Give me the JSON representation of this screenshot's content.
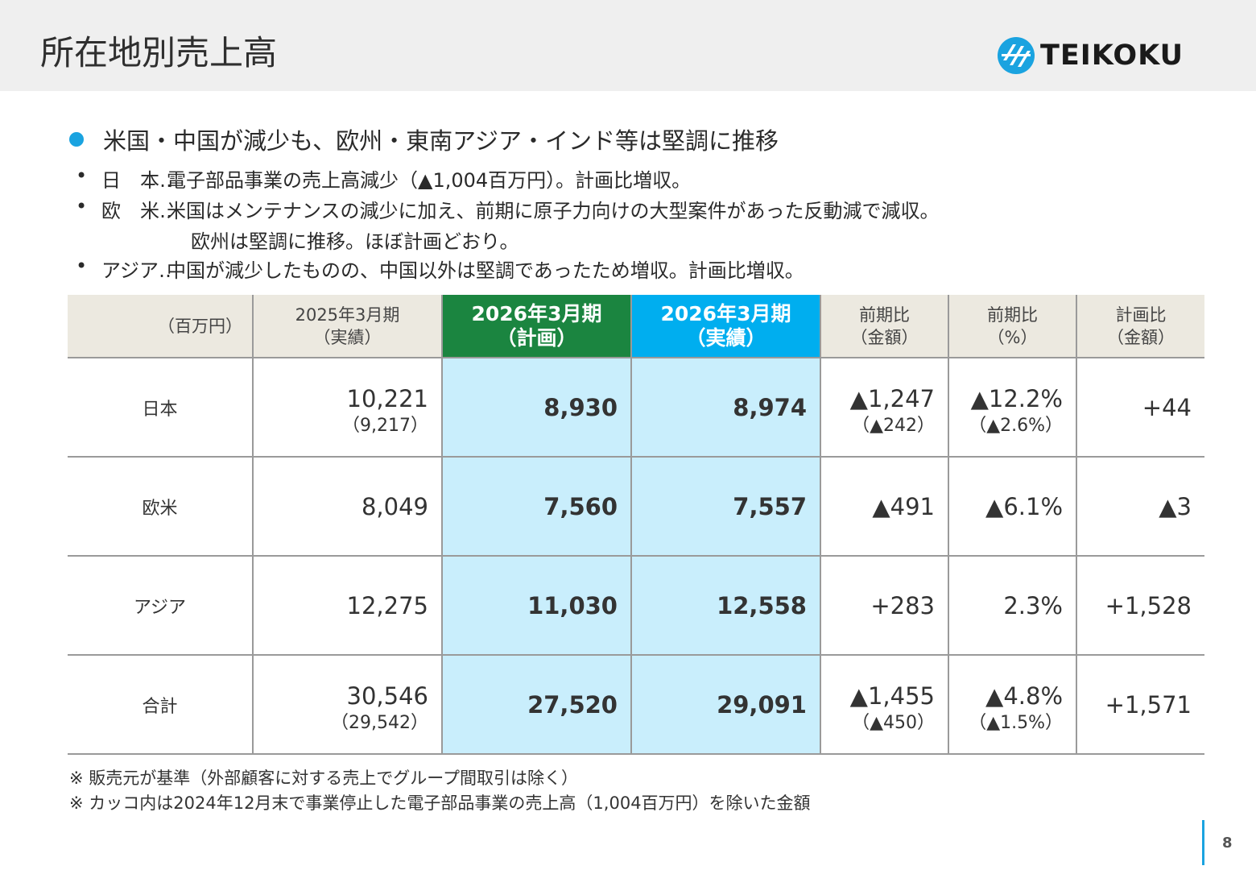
{
  "header": {
    "title": "所在地別売上高",
    "logo_text": "TEIKOKU"
  },
  "headline": "米国・中国が減少も、欧州・東南アジア・インド等は堅調に推移",
  "bullets": [
    {
      "mark": "•",
      "label": "日　本‥",
      "lines": [
        "電子部品事業の売上高減少（▲1,004百万円）。計画比増収。"
      ]
    },
    {
      "mark": "•",
      "label": "欧　米‥",
      "lines": [
        "米国はメンテナンスの減少に加え、前期に原子力向けの大型案件があった反動減で減収。",
        "欧州は堅調に推移。ほぼ計画どおり。"
      ]
    },
    {
      "mark": "•",
      "label": "アジア‥",
      "lines": [
        "中国が減少したものの、中国以外は堅調であったため増収。計画比増収。"
      ]
    }
  ],
  "table": {
    "unit": "（百万円）",
    "columns": [
      {
        "line1": "2025年3月期",
        "line2": "（実績）"
      },
      {
        "line1": "2026年3月期",
        "line2": "（計画）"
      },
      {
        "line1": "2026年3月期",
        "line2": "（実績）"
      },
      {
        "line1": "前期比",
        "line2": "（金額）"
      },
      {
        "line1": "前期比",
        "line2": "（%）"
      },
      {
        "line1": "計画比",
        "line2": "（金額）"
      }
    ],
    "rows": [
      {
        "region": "日本",
        "cells": [
          {
            "v": "10,221",
            "sub": "（9,217）"
          },
          {
            "v": "8,930"
          },
          {
            "v": "8,974"
          },
          {
            "v": "▲1,247",
            "sub": "（▲242）"
          },
          {
            "v": "▲12.2%",
            "sub": "（▲2.6%）"
          },
          {
            "v": "+44"
          }
        ]
      },
      {
        "region": "欧米",
        "cells": [
          {
            "v": "8,049"
          },
          {
            "v": "7,560"
          },
          {
            "v": "7,557"
          },
          {
            "v": "▲491"
          },
          {
            "v": "▲6.1%"
          },
          {
            "v": "▲3"
          }
        ]
      },
      {
        "region": "アジア",
        "cells": [
          {
            "v": "12,275"
          },
          {
            "v": "11,030"
          },
          {
            "v": "12,558"
          },
          {
            "v": "+283"
          },
          {
            "v": "2.3%"
          },
          {
            "v": "+1,528"
          }
        ]
      },
      {
        "region": "合計",
        "cells": [
          {
            "v": "30,546",
            "sub": "（29,542）"
          },
          {
            "v": "27,520"
          },
          {
            "v": "29,091"
          },
          {
            "v": "▲1,455",
            "sub": "（▲450）"
          },
          {
            "v": "▲4.8%",
            "sub": "（▲1.5%）"
          },
          {
            "v": "+1,571"
          }
        ]
      }
    ]
  },
  "notes": [
    "※ 販売元が基準（外部顧客に対する売上でグループ間取引は除く）",
    "※ カッコ内は2024年12月末で事業停止した電子部品事業の売上高（1,004百万円）を除いた金額"
  ],
  "page_number": "8",
  "colors": {
    "header_bg": "#efefef",
    "accent_blue": "#00aeef",
    "plan_green": "#1b8540",
    "highlight_cell": "#c9eefc",
    "table_header_bg": "#ece9e0"
  },
  "icons": {
    "logo_mark": "teikoku-logo-icon",
    "headline_dot": "bullet-dot-icon"
  }
}
